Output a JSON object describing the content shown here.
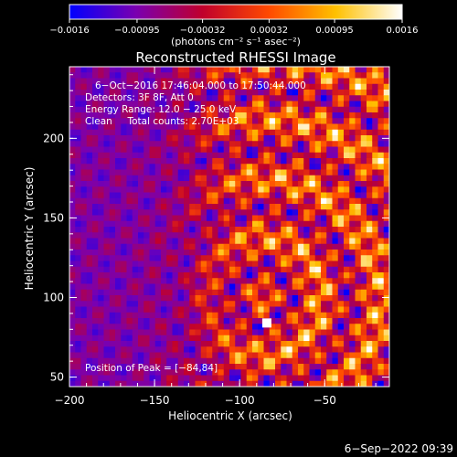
{
  "chart_data": {
    "type": "heatmap",
    "title": "Reconstructed RHESSI Image",
    "xlabel": "Heliocentric X (arcsec)",
    "ylabel": "Heliocentric Y (arcsec)",
    "x_range": [
      -200,
      -12
    ],
    "y_range": [
      44,
      245
    ],
    "x_ticks": [
      -200,
      -150,
      -100,
      -50
    ],
    "x_tick_labels": [
      "−200",
      "−150",
      "−100",
      "−50"
    ],
    "y_ticks": [
      50,
      100,
      150,
      200
    ],
    "y_tick_labels": [
      "50",
      "100",
      "150",
      "200"
    ],
    "colorbar": {
      "range": [
        -0.0016,
        0.0016
      ],
      "tick_values": [
        -0.0016,
        -0.00095,
        -0.00032,
        0.00032,
        0.00095,
        0.0016
      ],
      "tick_labels": [
        "−0.0016",
        "−0.00095",
        "−0.00032",
        "0.00032",
        "0.00095",
        "0.0016"
      ],
      "unit_label": "(photons cm⁻² s⁻¹ asec⁻²)",
      "colors": [
        "#0000ff",
        "#7a00b0",
        "#c0002c",
        "#ff4a00",
        "#ffc000",
        "#ffffff"
      ]
    },
    "annotations": [
      "6−Oct−2016 17:46:04.000 to 17:50:44.000",
      "Detectors: 3F 8F, Att 0",
      "Energy Range: 12.0 − 25.0 keV",
      "Clean     Total counts: 2.70E+03"
    ],
    "peak_label": "Position of Peak = [−84,84]",
    "peak_position": [
      -84,
      84
    ],
    "background_color": "#4a1a8c",
    "grid": false,
    "legend": "colorbar-top"
  },
  "footer": {
    "date": "6−Sep−2022 09:39"
  }
}
